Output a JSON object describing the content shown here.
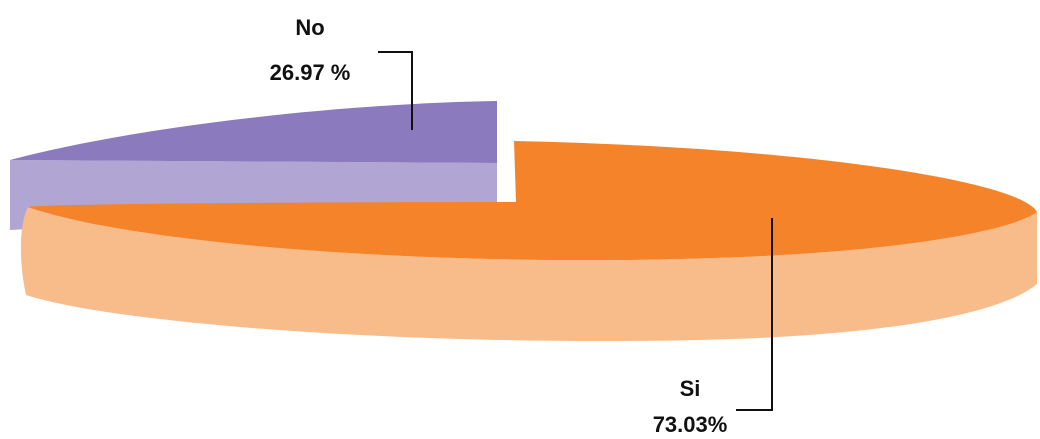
{
  "chart_data": {
    "type": "pie",
    "style": "3d-exploded",
    "title": "",
    "slices": [
      {
        "label": "No",
        "value": 26.97,
        "value_text": "26.97 %",
        "color": "#8B7BBE",
        "side_color": "#B0A5D3"
      },
      {
        "label": "Si",
        "value": 73.03,
        "value_text": "73.03%",
        "color": "#F5832A",
        "side_color": "#F8BB8A"
      }
    ]
  }
}
